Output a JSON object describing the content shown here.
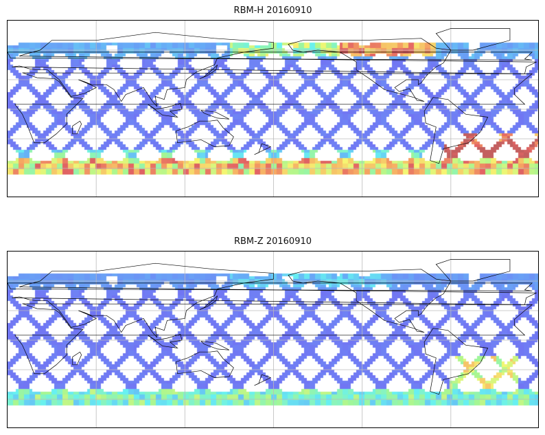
{
  "panels": [
    {
      "title": "RBM-H 20160910",
      "variable": "RBM-H"
    },
    {
      "title": "RBM-Z 20160910",
      "variable": "RBM-Z"
    }
  ],
  "map": {
    "projection": "PlateCarree",
    "lon_range": [
      0,
      360
    ],
    "lat_range": [
      -90,
      90
    ],
    "gridlines": {
      "lon_step": 60,
      "lat_step": 30,
      "shown": true
    },
    "coastlines": true,
    "colormap": "jet",
    "colors": {
      "low": "#6a6af2",
      "mid": "#5ff0f0",
      "high": "#f5f56a",
      "max": "#e25c5c",
      "extreme": "#c05656"
    }
  }
}
